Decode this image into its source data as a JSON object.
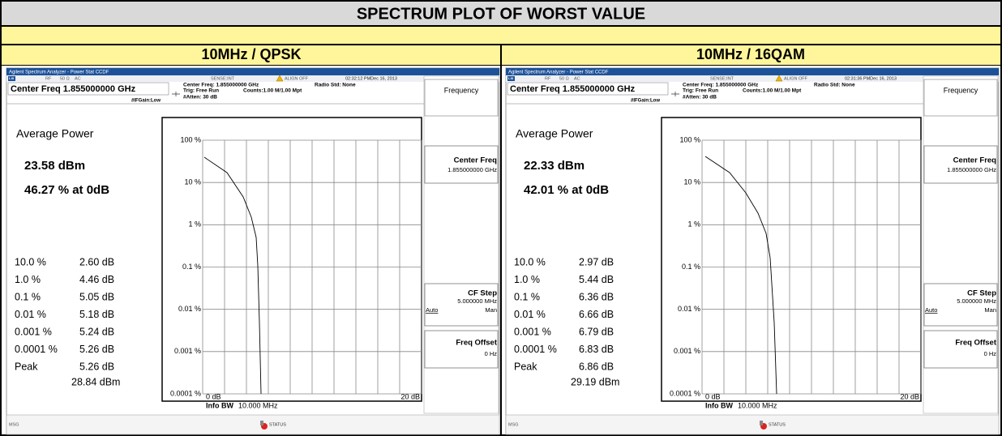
{
  "title": "SPECTRUM PLOT OF WORST VALUE",
  "columns": [
    {
      "header": "10MHz / QPSK",
      "screen": {
        "time": "02:32:12 PMDec 16, 2013",
        "average_power": "23.58 dBm",
        "at_0db": "46.27 % at 0dB",
        "stats": [
          [
            "10.0 %",
            "2.60 dB"
          ],
          [
            "1.0 %",
            "4.46 dB"
          ],
          [
            "0.1 %",
            "5.05 dB"
          ],
          [
            "0.01 %",
            "5.18 dB"
          ],
          [
            "0.001 %",
            "5.24 dB"
          ],
          [
            "0.0001 %",
            "5.26 dB"
          ]
        ],
        "peak_db": "5.26 dB",
        "peak_dbm": "28.84 dBm"
      }
    },
    {
      "header": "10MHz / 16QAM",
      "screen": {
        "time": "02:31:36 PMDec 16, 2013",
        "average_power": "22.33 dBm",
        "at_0db": "42.01 % at 0dB",
        "stats": [
          [
            "10.0 %",
            "2.97 dB"
          ],
          [
            "1.0 %",
            "5.44 dB"
          ],
          [
            "0.1 %",
            "6.36 dB"
          ],
          [
            "0.01 %",
            "6.66 dB"
          ],
          [
            "0.001 %",
            "6.79 dB"
          ],
          [
            "0.0001 %",
            "6.83 dB"
          ]
        ],
        "peak_db": "6.86 dB",
        "peak_dbm": "29.19 dBm"
      }
    }
  ],
  "screen": {
    "app_title": "Agilent Spectrum Analyzer - Power Stat CCDF",
    "lxi": "LXI",
    "rf": "RF",
    "impedance": "50 Ω",
    "coupling": "AC",
    "sense": "SENSE:INT",
    "align": "ALIGN OFF",
    "radio_std": "Radio Std: None",
    "center_freq_box": "Center Freq 1.855000000 GHz",
    "center_freq": "Center Freq: 1.855000000 GHz",
    "trig": "Trig: Free Run",
    "counts": "Counts:1.00 M/1.00 Mpt",
    "if_gain": "#IFGain:Low",
    "atten": "#Atten: 30 dB",
    "average_power_label": "Average Power",
    "peak_label": "Peak",
    "y_axis": [
      "100 %",
      "10 %",
      "1 %",
      "0.1 %",
      "0.01 %",
      "0.001 %",
      "0.0001 %"
    ],
    "x_start": "0 dB",
    "x_end": "20 dB",
    "info_bw_label": "Info BW",
    "info_bw": "10.000 MHz",
    "softkeys": {
      "frequency": "Frequency",
      "center_freq": "Center Freq",
      "center_freq_value": "1.855000000 GHz",
      "cf_step": "CF Step",
      "cf_step_value": "5.000000 MHz",
      "auto": "Auto",
      "man": "Man",
      "freq_offset": "Freq Offset",
      "freq_offset_value": "0 Hz"
    },
    "msg": "MSG",
    "status": "STATUS"
  }
}
